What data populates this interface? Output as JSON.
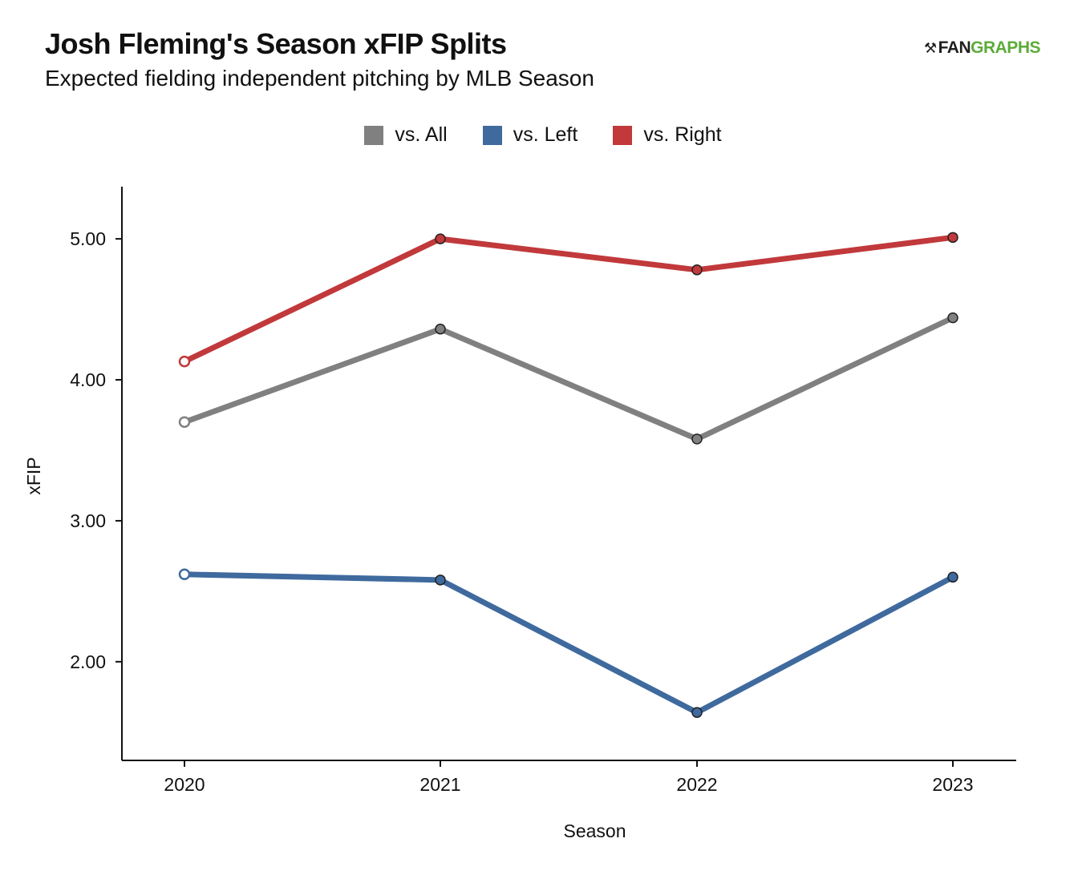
{
  "header": {
    "title": "Josh Fleming's Season xFIP Splits",
    "subtitle": "Expected fielding independent pitching by MLB Season",
    "logo_mark": "⚒",
    "logo_fan": "FAN",
    "logo_graphs": "GRAPHS"
  },
  "colors": {
    "all": "#808080",
    "left": "#3f6a9e",
    "right": "#c1393b"
  },
  "chart_data": {
    "type": "line",
    "title": "Josh Fleming's Season xFIP Splits",
    "subtitle": "Expected fielding independent pitching by MLB Season",
    "xlabel": "Season",
    "ylabel": "xFIP",
    "categories": [
      "2020",
      "2021",
      "2022",
      "2023"
    ],
    "yticks": [
      "2.00",
      "3.00",
      "4.00",
      "5.00"
    ],
    "ylim": [
      1.3,
      5.37
    ],
    "legend_position": "top-center",
    "grid": false,
    "series": [
      {
        "name": "vs. All",
        "color_key": "all",
        "values": [
          3.7,
          4.36,
          3.58,
          4.44
        ]
      },
      {
        "name": "vs. Left",
        "color_key": "left",
        "values": [
          2.62,
          2.58,
          1.64,
          2.6
        ]
      },
      {
        "name": "vs. Right",
        "color_key": "right",
        "values": [
          4.13,
          5.0,
          4.78,
          5.01
        ]
      }
    ]
  }
}
